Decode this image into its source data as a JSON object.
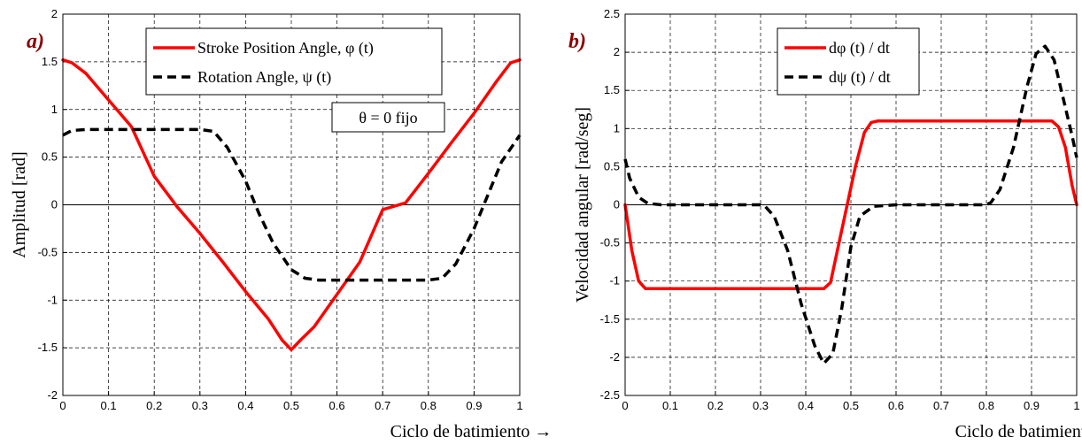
{
  "chart_data": [
    {
      "type": "line",
      "panel_label": "a)",
      "title": "",
      "xlabel": "Ciclo de batimiento →",
      "ylabel": "Amplitud [rad]",
      "xlim": [
        0,
        1
      ],
      "ylim": [
        -2,
        2
      ],
      "xticks": [
        "0",
        "0.1",
        "0.2",
        "0.3",
        "0.4",
        "0.5",
        "0.6",
        "0.7",
        "0.8",
        "0.9",
        "1"
      ],
      "yticks": [
        "-2",
        "-1.5",
        "-1",
        "-0.5",
        "0",
        "0.5",
        "1",
        "1.5",
        "2"
      ],
      "grid": true,
      "legend_position": "top-right",
      "annotation": "θ = 0  fijo",
      "series": [
        {
          "name": "Stroke Position Angle, φ (t)",
          "color": "#ff0000",
          "dash": "solid",
          "x": [
            0,
            0.02,
            0.05,
            0.1,
            0.15,
            0.2,
            0.25,
            0.3,
            0.35,
            0.4,
            0.45,
            0.48,
            0.5,
            0.52,
            0.55,
            0.6,
            0.65,
            0.7,
            0.75,
            0.8,
            0.85,
            0.9,
            0.95,
            0.98,
            1
          ],
          "y": [
            1.52,
            1.49,
            1.38,
            1.1,
            0.82,
            0.3,
            -0.02,
            -0.3,
            -0.6,
            -0.91,
            -1.2,
            -1.42,
            -1.52,
            -1.42,
            -1.28,
            -0.94,
            -0.6,
            -0.05,
            0.02,
            0.33,
            0.65,
            0.96,
            1.3,
            1.49,
            1.52
          ]
        },
        {
          "name": "Rotation Angle, ψ (t)",
          "color": "#000000",
          "dash": "dashed",
          "x": [
            0,
            0.02,
            0.05,
            0.1,
            0.2,
            0.3,
            0.33,
            0.36,
            0.4,
            0.43,
            0.46,
            0.5,
            0.53,
            0.56,
            0.6,
            0.7,
            0.8,
            0.83,
            0.86,
            0.9,
            0.93,
            0.96,
            1
          ],
          "y": [
            0.73,
            0.78,
            0.79,
            0.79,
            0.79,
            0.79,
            0.77,
            0.6,
            0.25,
            -0.1,
            -0.4,
            -0.68,
            -0.77,
            -0.79,
            -0.79,
            -0.79,
            -0.79,
            -0.77,
            -0.62,
            -0.25,
            0.1,
            0.45,
            0.73
          ]
        }
      ]
    },
    {
      "type": "line",
      "panel_label": "b)",
      "title": "",
      "xlabel": "Ciclo de batimiento →",
      "ylabel": "Velocidad angular [rad/seg]",
      "xlim": [
        0,
        1
      ],
      "ylim": [
        -2.5,
        2.5
      ],
      "xticks": [
        "0",
        "0.1",
        "0.2",
        "0.3",
        "0.4",
        "0.5",
        "0.6",
        "0.7",
        "0.8",
        "0.9",
        "1"
      ],
      "yticks": [
        "-2.5",
        "-2",
        "-1.5",
        "-1",
        "-0.5",
        "0",
        "0.5",
        "1",
        "1.5",
        "2",
        "2.5"
      ],
      "grid": true,
      "legend_position": "top-right",
      "series": [
        {
          "name": "dφ (t) / dt",
          "color": "#ff0000",
          "dash": "solid",
          "x": [
            0,
            0.015,
            0.03,
            0.045,
            0.06,
            0.1,
            0.2,
            0.3,
            0.4,
            0.44,
            0.455,
            0.47,
            0.49,
            0.51,
            0.53,
            0.545,
            0.56,
            0.6,
            0.7,
            0.8,
            0.9,
            0.945,
            0.96,
            0.975,
            0.99,
            1
          ],
          "y": [
            0,
            -0.6,
            -1.0,
            -1.1,
            -1.1,
            -1.1,
            -1.1,
            -1.1,
            -1.1,
            -1.1,
            -1.02,
            -0.6,
            -0.05,
            0.5,
            0.95,
            1.08,
            1.1,
            1.1,
            1.1,
            1.1,
            1.1,
            1.1,
            1.02,
            0.75,
            0.25,
            0
          ]
        },
        {
          "name": "dψ (t) / dt",
          "color": "#000000",
          "dash": "dashed",
          "x": [
            0,
            0.01,
            0.03,
            0.05,
            0.08,
            0.1,
            0.2,
            0.3,
            0.31,
            0.33,
            0.36,
            0.39,
            0.42,
            0.44,
            0.46,
            0.48,
            0.5,
            0.52,
            0.55,
            0.6,
            0.7,
            0.8,
            0.81,
            0.83,
            0.86,
            0.89,
            0.91,
            0.93,
            0.95,
            0.97,
            0.99,
            1
          ],
          "y": [
            0.6,
            0.35,
            0.1,
            0.02,
            0,
            0,
            0,
            0,
            -0.02,
            -0.15,
            -0.6,
            -1.3,
            -1.85,
            -2.08,
            -1.95,
            -1.35,
            -0.55,
            -0.15,
            -0.02,
            0,
            0,
            0,
            0.03,
            0.2,
            0.75,
            1.55,
            1.98,
            2.08,
            1.9,
            1.4,
            0.9,
            0.62
          ]
        }
      ]
    }
  ]
}
